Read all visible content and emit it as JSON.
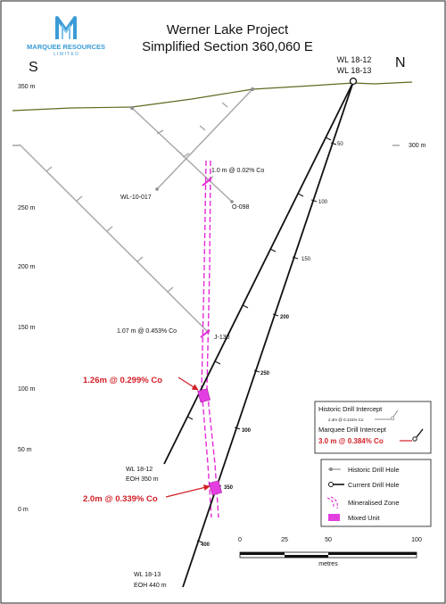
{
  "brand": {
    "name": "MARQUEE RESOURCES",
    "sub": "L I M I T E D",
    "logo_color": "#3a9bd6"
  },
  "title": {
    "line1": "Werner Lake Project",
    "line2": "Simplified Section 360,060 E"
  },
  "directions": {
    "south": "S",
    "north": "N"
  },
  "collars": {
    "line1": "WL 18-12",
    "line2": "WL 18-13"
  },
  "elevations": [
    "350 m",
    "300 m",
    "250 m",
    "200 m",
    "150 m",
    "100 m",
    "50 m",
    "0 m"
  ],
  "right_label_300": "300 m",
  "holes": {
    "h1": "WL-10-017",
    "h2": "O-098",
    "h3": "J-130",
    "wl1812_name": "WL 18-12",
    "wl1812_eoh": "EOH 350 m",
    "wl1813_name": "WL 18-13",
    "wl1813_eoh": "EOH 440 m"
  },
  "depth_marks": {
    "wl1813": [
      "50",
      "100",
      "150",
      "200",
      "250",
      "300",
      "350",
      "400"
    ]
  },
  "intercepts": {
    "hist1": "1.0 m @ 0.02% Co",
    "hist2": "1.07 m @ 0.453% Co",
    "cur1": "1.26m @ 0.299% Co",
    "cur2": "2.0m @ 0.339% Co"
  },
  "legend_intercept": {
    "historic_title": "Historic Drill Intercept",
    "historic_example": "2.4m @ 0.141% Co",
    "marquee_title": "Marquee Drill Intercept",
    "marquee_example": "3.0 m @ 0.384% Co"
  },
  "legend": {
    "historic_hole": "Historic Drill Hole",
    "current_hole": "Current Drill Hole",
    "mineralised": "Mineralised Zone",
    "mixed": "Mixed Unit"
  },
  "scale": {
    "t0": "0",
    "t25": "25",
    "t50": "50",
    "t100": "100",
    "unit": "metres"
  },
  "colors": {
    "surface": "#5d6b20",
    "historic": "#a6a6a6",
    "current": "#111111",
    "zone": "#e62bd9",
    "mixed": "#e33ee0",
    "highlight": "#d21f26"
  }
}
